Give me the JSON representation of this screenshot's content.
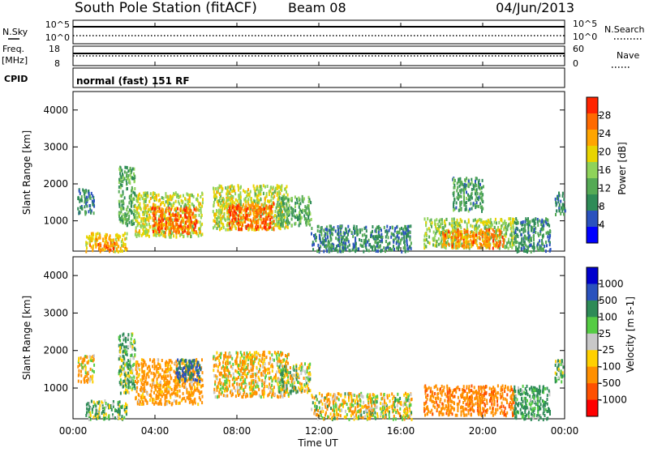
{
  "header": {
    "station": "South Pole Station (fitACF)",
    "beam": "Beam 08",
    "date": "04/Jun/2013"
  },
  "summary_panels": {
    "nsky_label": "N.Sky",
    "freq_label": "Freq.",
    "freq_unit": "[MHz]",
    "cpid_label": "CPID",
    "cpid_text": "normal (fast) 151 RF",
    "nsearch_label": "N.Search",
    "nave_label": "Nave",
    "left_ticks_top": [
      "10^5",
      "10^0"
    ],
    "right_ticks_top": [
      "10^5",
      "10^0"
    ],
    "left_ticks_freq": [
      "18",
      "8"
    ],
    "right_ticks_nave": [
      "60",
      "0"
    ]
  },
  "colors": {
    "power_scale": [
      "#0000ff",
      "#2a52be",
      "#2e8b57",
      "#55aa55",
      "#8fd35a",
      "#e8d400",
      "#ffa500",
      "#ff6a00",
      "#ff2400"
    ],
    "velocity_scale": [
      "#0000cd",
      "#2a52be",
      "#2e8b57",
      "#55cc44",
      "#c8c8c8",
      "#ffd000",
      "#ff9000",
      "#ff5000",
      "#ff0000"
    ]
  },
  "chart_data": [
    {
      "type": "heatmap",
      "name": "power",
      "xlabel": "",
      "ylabel": "Slant Range [km]",
      "colorbar_label": "Power [dB]",
      "colorbar_ticks": [
        "28",
        "24",
        "20",
        "16",
        "12",
        "8",
        "4"
      ],
      "ylim": [
        180,
        4500
      ],
      "yticks": [
        "1000",
        "2000",
        "3000",
        "4000"
      ],
      "xlim": [
        "00:00",
        "24:00"
      ],
      "blobs": [
        {
          "t0": 0.2,
          "t1": 1.0,
          "r0": 1200,
          "r1": 1900,
          "level": 8
        },
        {
          "t0": 0.6,
          "t1": 2.6,
          "r0": 200,
          "r1": 700,
          "level": 22
        },
        {
          "t0": 1.2,
          "t1": 2.0,
          "r0": 200,
          "r1": 450,
          "level": 28
        },
        {
          "t0": 2.2,
          "t1": 3.0,
          "r0": 900,
          "r1": 2500,
          "level": 12
        },
        {
          "t0": 3.0,
          "t1": 6.3,
          "r0": 600,
          "r1": 1800,
          "level": 18
        },
        {
          "t0": 3.8,
          "t1": 6.0,
          "r0": 700,
          "r1": 1400,
          "level": 28
        },
        {
          "t0": 6.8,
          "t1": 10.5,
          "r0": 800,
          "r1": 2000,
          "level": 18
        },
        {
          "t0": 7.5,
          "t1": 9.8,
          "r0": 800,
          "r1": 1500,
          "level": 28
        },
        {
          "t0": 10.0,
          "t1": 11.6,
          "r0": 900,
          "r1": 1700,
          "level": 12
        },
        {
          "t0": 11.6,
          "t1": 16.5,
          "r0": 200,
          "r1": 900,
          "level": 8
        },
        {
          "t0": 17.1,
          "t1": 21.5,
          "r0": 300,
          "r1": 1100,
          "level": 16
        },
        {
          "t0": 18.0,
          "t1": 21.0,
          "r0": 300,
          "r1": 800,
          "level": 26
        },
        {
          "t0": 18.5,
          "t1": 20.0,
          "r0": 1300,
          "r1": 2200,
          "level": 10
        },
        {
          "t0": 21.5,
          "t1": 23.3,
          "r0": 200,
          "r1": 1100,
          "level": 8
        },
        {
          "t0": 23.5,
          "t1": 24.0,
          "r0": 1200,
          "r1": 1800,
          "level": 8
        }
      ]
    },
    {
      "type": "heatmap",
      "name": "velocity",
      "xlabel": "Time UT",
      "ylabel": "Slant Range [km]",
      "colorbar_label": "Velocity [m s-1]",
      "colorbar_ticks": [
        "1000",
        "500",
        "100",
        "25",
        "-25",
        "-100",
        "-500",
        "-1000"
      ],
      "ylim": [
        180,
        4500
      ],
      "yticks": [
        "1000",
        "2000",
        "3000",
        "4000"
      ],
      "xlim": [
        "00:00",
        "24:00"
      ],
      "xticks": [
        "00:00",
        "04:00",
        "08:00",
        "12:00",
        "16:00",
        "20:00",
        "00:00"
      ],
      "blobs": [
        {
          "t0": 0.2,
          "t1": 1.0,
          "r0": 1200,
          "r1": 1900,
          "v": -100
        },
        {
          "t0": 0.6,
          "t1": 2.6,
          "r0": 200,
          "r1": 700,
          "v": 100
        },
        {
          "t0": 2.2,
          "t1": 3.0,
          "r0": 900,
          "r1": 2500,
          "v": 100
        },
        {
          "t0": 3.0,
          "t1": 6.3,
          "r0": 600,
          "r1": 1800,
          "v": -200
        },
        {
          "t0": 5.0,
          "t1": 6.2,
          "r0": 1200,
          "r1": 1800,
          "v": 500
        },
        {
          "t0": 6.8,
          "t1": 10.5,
          "r0": 800,
          "r1": 2000,
          "v": -100
        },
        {
          "t0": 10.0,
          "t1": 11.6,
          "r0": 900,
          "r1": 1700,
          "v": 50
        },
        {
          "t0": 11.6,
          "t1": 16.5,
          "r0": 200,
          "r1": 900,
          "v": -50
        },
        {
          "t0": 17.1,
          "t1": 21.5,
          "r0": 300,
          "r1": 1100,
          "v": -400
        },
        {
          "t0": 21.5,
          "t1": 23.3,
          "r0": 200,
          "r1": 1100,
          "v": 200
        },
        {
          "t0": 23.5,
          "t1": 24.0,
          "r0": 1200,
          "r1": 1800,
          "v": 100
        }
      ]
    }
  ]
}
